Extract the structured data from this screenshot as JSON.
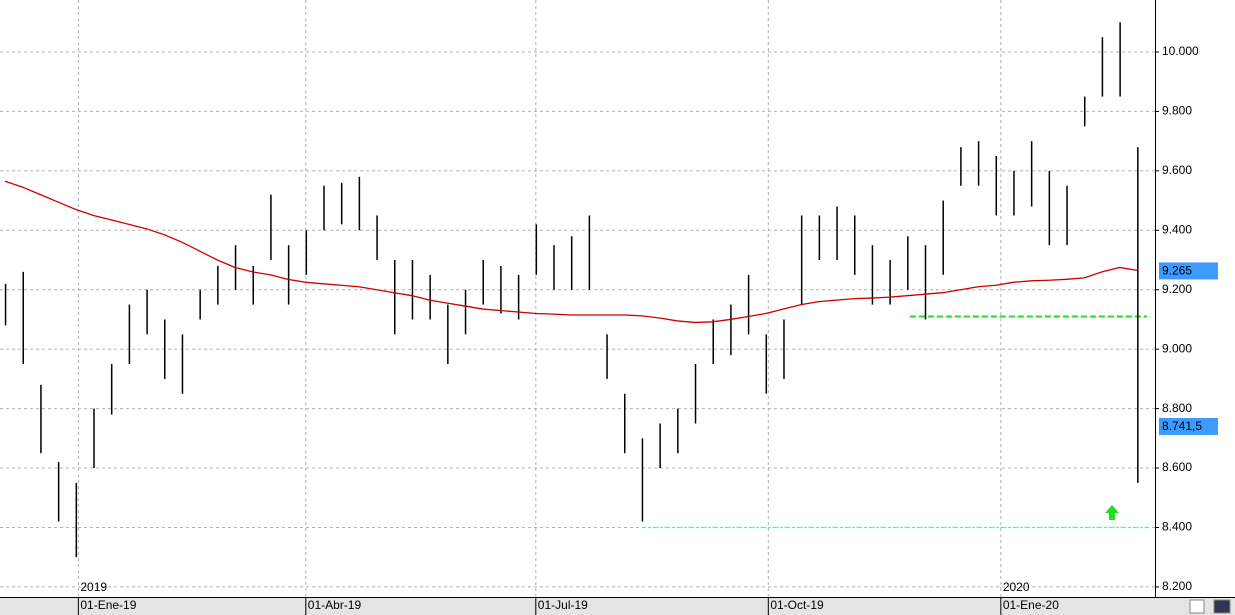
{
  "chart_data": {
    "type": "ohlc",
    "bar_color": "#000000",
    "grid": true,
    "x": [
      "2018-12-03",
      "2018-12-10",
      "2018-12-17",
      "2018-12-24",
      "2018-12-31",
      "2019-01-07",
      "2019-01-14",
      "2019-01-21",
      "2019-01-28",
      "2019-02-04",
      "2019-02-11",
      "2019-02-18",
      "2019-02-25",
      "2019-03-04",
      "2019-03-11",
      "2019-03-18",
      "2019-03-25",
      "2019-04-01",
      "2019-04-08",
      "2019-04-15",
      "2019-04-22",
      "2019-04-29",
      "2019-05-06",
      "2019-05-13",
      "2019-05-20",
      "2019-05-27",
      "2019-06-03",
      "2019-06-10",
      "2019-06-17",
      "2019-06-24",
      "2019-07-01",
      "2019-07-08",
      "2019-07-15",
      "2019-07-22",
      "2019-07-29",
      "2019-08-05",
      "2019-08-12",
      "2019-08-19",
      "2019-08-26",
      "2019-09-02",
      "2019-09-09",
      "2019-09-16",
      "2019-09-23",
      "2019-09-30",
      "2019-10-07",
      "2019-10-14",
      "2019-10-21",
      "2019-10-28",
      "2019-11-04",
      "2019-11-11",
      "2019-11-18",
      "2019-11-25",
      "2019-12-02",
      "2019-12-09",
      "2019-12-16",
      "2019-12-23",
      "2019-12-30",
      "2020-01-06",
      "2020-01-13",
      "2020-01-20",
      "2020-01-27",
      "2020-02-03",
      "2020-02-10",
      "2020-02-17",
      "2020-02-24"
    ],
    "high": [
      9220,
      9260,
      8880,
      8620,
      8550,
      8800,
      8950,
      9150,
      9200,
      9100,
      9050,
      9200,
      9280,
      9350,
      9280,
      9520,
      9350,
      9400,
      9550,
      9560,
      9580,
      9450,
      9300,
      9300,
      9250,
      9150,
      9200,
      9300,
      9280,
      9250,
      9420,
      9350,
      9380,
      9450,
      9050,
      8850,
      8700,
      8750,
      8800,
      8950,
      9100,
      9150,
      9250,
      9050,
      9100,
      9450,
      9450,
      9480,
      9450,
      9350,
      9300,
      9380,
      9350,
      9500,
      9680,
      9700,
      9650,
      9600,
      9700,
      9600,
      9550,
      9850,
      10050,
      10100,
      9680
    ],
    "low": [
      9080,
      8950,
      8650,
      8420,
      8300,
      8600,
      8780,
      8950,
      9050,
      8900,
      8850,
      9100,
      9150,
      9200,
      9150,
      9300,
      9150,
      9250,
      9400,
      9420,
      9400,
      9300,
      9050,
      9100,
      9100,
      8950,
      9050,
      9150,
      9120,
      9100,
      9250,
      9200,
      9200,
      9200,
      8900,
      8650,
      8420,
      8600,
      8650,
      8750,
      8950,
      8980,
      9050,
      8850,
      8900,
      9150,
      9300,
      9300,
      9250,
      9150,
      9150,
      9200,
      9100,
      9250,
      9550,
      9550,
      9450,
      9450,
      9480,
      9350,
      9350,
      9750,
      9850,
      9850,
      8550
    ],
    "moving_average": {
      "color": "#cc0000",
      "values": [
        9565,
        9545,
        9520,
        9495,
        9470,
        9450,
        9435,
        9420,
        9405,
        9385,
        9360,
        9330,
        9300,
        9275,
        9260,
        9250,
        9235,
        9225,
        9220,
        9215,
        9210,
        9200,
        9190,
        9180,
        9165,
        9155,
        9145,
        9135,
        9130,
        9125,
        9120,
        9118,
        9115,
        9115,
        9115,
        9115,
        9112,
        9105,
        9095,
        9090,
        9092,
        9100,
        9110,
        9120,
        9135,
        9150,
        9160,
        9165,
        9170,
        9172,
        9175,
        9180,
        9185,
        9190,
        9200,
        9210,
        9215,
        9225,
        9230,
        9232,
        9235,
        9240,
        9260,
        9275,
        9265
      ]
    },
    "levels": [
      {
        "value": 9110,
        "start": "2019-11-26",
        "color": "#22dd22",
        "style": "dashed"
      },
      {
        "value": 8400,
        "start": "2019-08-13",
        "color": "#66e6ff",
        "style": "dotted"
      }
    ],
    "price_labels": [
      {
        "value": 9265,
        "label": "9.265",
        "color": "#3d9bff"
      },
      {
        "value": 8741.5,
        "label": "8.741,5",
        "color": "#3d9bff"
      }
    ],
    "xlim": [
      "2018-12-01",
      "2020-03-02"
    ],
    "xticks": [
      {
        "value": "2019-01-01",
        "label": "01-Ene-19"
      },
      {
        "value": "2019-04-01",
        "label": "01-Abr-19"
      },
      {
        "value": "2019-07-01",
        "label": "01-Jul-19"
      },
      {
        "value": "2019-10-01",
        "label": "01-Oct-19"
      },
      {
        "value": "2020-01-01",
        "label": "01-Ene-20"
      }
    ],
    "year_labels": [
      {
        "value": "2019-01-01",
        "label": "2019"
      },
      {
        "value": "2020-01-01",
        "label": "2020"
      }
    ],
    "ylim": [
      8166,
      10175
    ],
    "yticks": [
      {
        "value": 8200,
        "label": "8.200"
      },
      {
        "value": 8400,
        "label": "8.400"
      },
      {
        "value": 8600,
        "label": "8.600"
      },
      {
        "value": 8800,
        "label": "8.800"
      },
      {
        "value": 9000,
        "label": "9.000"
      },
      {
        "value": 9200,
        "label": "9.200"
      },
      {
        "value": 9400,
        "label": "9.400"
      },
      {
        "value": 9600,
        "label": "9.600"
      },
      {
        "value": 9800,
        "label": "9.800"
      },
      {
        "value": 10000,
        "label": "10.000"
      }
    ]
  }
}
